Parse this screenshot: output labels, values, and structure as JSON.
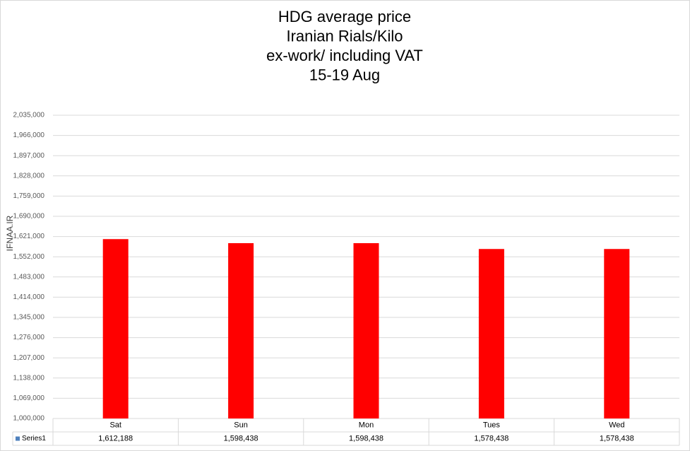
{
  "chart_data": {
    "type": "bar",
    "title": [
      "HDG average price",
      "Iranian Rials/Kilo",
      "ex-work/ including VAT",
      "15-19 Aug"
    ],
    "y_label": "IFNAA.IR",
    "categories": [
      "Sat",
      "Sun",
      "Mon",
      "Tues",
      "Wed"
    ],
    "series": [
      {
        "name": "Series1",
        "color": "#ff0000",
        "values": [
          1612188,
          1598438,
          1598438,
          1578438,
          1578438
        ],
        "value_labels": [
          "1,612,188",
          "1,598,438",
          "1,598,438",
          "1,578,438",
          "1,578,438"
        ]
      }
    ],
    "ylim": [
      1000000,
      2035000
    ],
    "yticks": [
      {
        "value": 1000000,
        "label": "1,000,000"
      },
      {
        "value": 1069000,
        "label": "1,069,000"
      },
      {
        "value": 1138000,
        "label": "1,138,000"
      },
      {
        "value": 1207000,
        "label": "1,207,000"
      },
      {
        "value": 1276000,
        "label": "1,276,000"
      },
      {
        "value": 1345000,
        "label": "1,345,000"
      },
      {
        "value": 1414000,
        "label": "1,414,000"
      },
      {
        "value": 1483000,
        "label": "1,483,000"
      },
      {
        "value": 1552000,
        "label": "1,552,000"
      },
      {
        "value": 1621000,
        "label": "1,621,000"
      },
      {
        "value": 1690000,
        "label": "1,690,000"
      },
      {
        "value": 1759000,
        "label": "1,759,000"
      },
      {
        "value": 1828000,
        "label": "1,828,000"
      },
      {
        "value": 1897000,
        "label": "1,897,000"
      },
      {
        "value": 1966000,
        "label": "1,966,000"
      },
      {
        "value": 2035000,
        "label": "2,035,000"
      }
    ],
    "grid": true
  }
}
